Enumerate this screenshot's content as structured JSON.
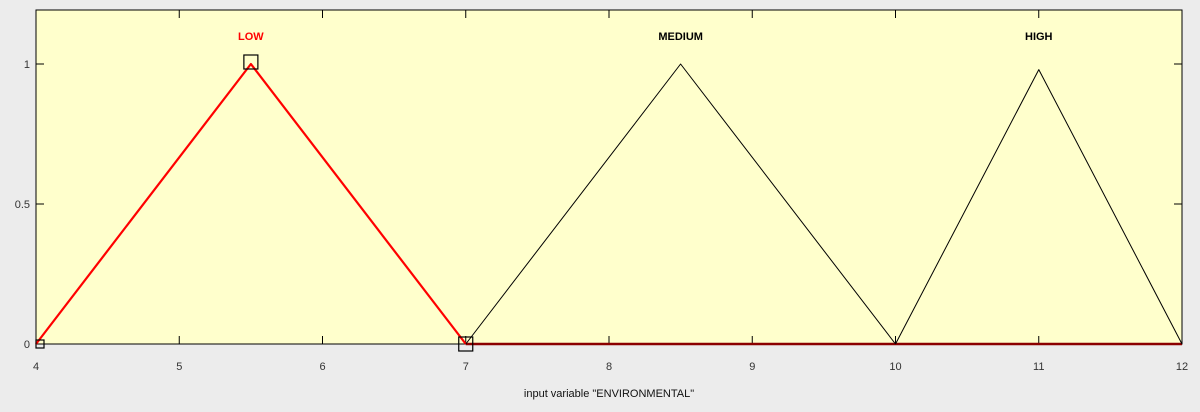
{
  "chart_data": {
    "type": "line",
    "xlabel": "input variable \"ENVIRONMENTAL\"",
    "xlim": [
      4,
      12
    ],
    "ylim": [
      0,
      1
    ],
    "x_ticks": [
      "4",
      "5",
      "6",
      "7",
      "8",
      "9",
      "10",
      "11",
      "12"
    ],
    "y_ticks": [
      "0",
      "0.5",
      "1"
    ],
    "grid": false,
    "series": [
      {
        "name": "LOW",
        "x": [
          4,
          5.5,
          7
        ],
        "y": [
          0,
          1,
          0
        ],
        "color": "#ff0000",
        "selected": true
      },
      {
        "name": "MEDIUM",
        "x": [
          7,
          8.5,
          10
        ],
        "y": [
          0,
          1,
          0
        ],
        "color": "#000000",
        "selected": false
      },
      {
        "name": "HIGH",
        "x": [
          10,
          11,
          12
        ],
        "y": [
          0,
          0.98,
          0
        ],
        "color": "#000000",
        "selected": false
      }
    ],
    "colors": {
      "plot_background": "#ffffcc",
      "axes": "#000000",
      "selected": "#ff0000",
      "baseline_selected": "#8b0000"
    }
  }
}
